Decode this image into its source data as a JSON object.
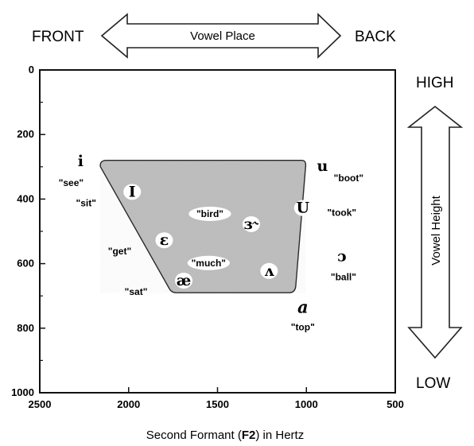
{
  "top": {
    "front_label": "FRONT",
    "back_label": "BACK",
    "arrow_label": "Vowel Place"
  },
  "right": {
    "high_label": "HIGH",
    "low_label": "LOW",
    "arrow_label": "Vowel Height"
  },
  "chart_data": {
    "type": "scatter",
    "xlabel_parts": [
      "Second Formant (",
      "F2",
      ") in Hertz"
    ],
    "ylabel": "",
    "xlim": [
      2500,
      500
    ],
    "ylim": [
      0,
      1000
    ],
    "x_ticks": [
      2500,
      2000,
      1500,
      1000,
      500
    ],
    "y_ticks": [
      0,
      200,
      400,
      600,
      800,
      1000
    ],
    "grid": false,
    "vowel_space": {
      "fill": "#bdbdbd",
      "corners": [
        [
          2150,
          280
        ],
        [
          1000,
          280
        ],
        [
          1060,
          690
        ],
        [
          1760,
          690
        ]
      ]
    },
    "vowels": [
      {
        "symbol": "i",
        "word": "\"see\"",
        "f2": 2270,
        "f1": 295,
        "sym_dx": 0,
        "sym_dy": 0,
        "word_dx": -12,
        "word_dy": 26,
        "inside": false
      },
      {
        "symbol": "I",
        "word": "\"sit\"",
        "f2": 1980,
        "f1": 390,
        "sym_dx": 0,
        "sym_dy": 0,
        "word_dx": -58,
        "word_dy": 13,
        "inside": true
      },
      {
        "symbol": "ɛ",
        "word": "\"get\"",
        "f2": 1800,
        "f1": 540,
        "sym_dx": 0,
        "sym_dy": 0,
        "word_dx": -56,
        "word_dy": 13,
        "inside": true
      },
      {
        "symbol": "æ",
        "word": "\"sat\"",
        "f2": 1690,
        "f1": 665,
        "sym_dx": 0,
        "sym_dy": 0,
        "word_dx": -60,
        "word_dy": 13,
        "inside": true
      },
      {
        "symbol": "ɜ˞",
        "word": "\"bird\"",
        "f2": 1310,
        "f1": 490,
        "sym_dx": 0,
        "sym_dy": 0,
        "word_dx": -52,
        "word_dy": -14,
        "inside": true
      },
      {
        "symbol": "ʌ",
        "word": "\"much\"",
        "f2": 1210,
        "f1": 635,
        "sym_dx": 0,
        "sym_dy": 0,
        "word_dx": -76,
        "word_dy": -11,
        "inside": true
      },
      {
        "symbol": "U",
        "word": "\"took\"",
        "f2": 1020,
        "f1": 440,
        "sym_dx": 0,
        "sym_dy": 0,
        "word_dx": 49,
        "word_dy": 5,
        "inside": true
      },
      {
        "symbol": "u",
        "word": "\"boot\"",
        "f2": 910,
        "f1": 310,
        "sym_dx": 0,
        "sym_dy": 0,
        "word_dx": 33,
        "word_dy": 14,
        "inside": false
      },
      {
        "symbol": "ɔ",
        "word": "\"ball\"",
        "f2": 800,
        "f1": 590,
        "sym_dx": 0,
        "sym_dy": 0,
        "word_dx": 2,
        "word_dy": 25,
        "inside": false
      },
      {
        "symbol": "a",
        "word": "\"top\"",
        "f2": 1020,
        "f1": 750,
        "sym_dx": 0,
        "sym_dy": 0,
        "word_dx": 0,
        "word_dy": 23,
        "inside": false
      }
    ]
  }
}
